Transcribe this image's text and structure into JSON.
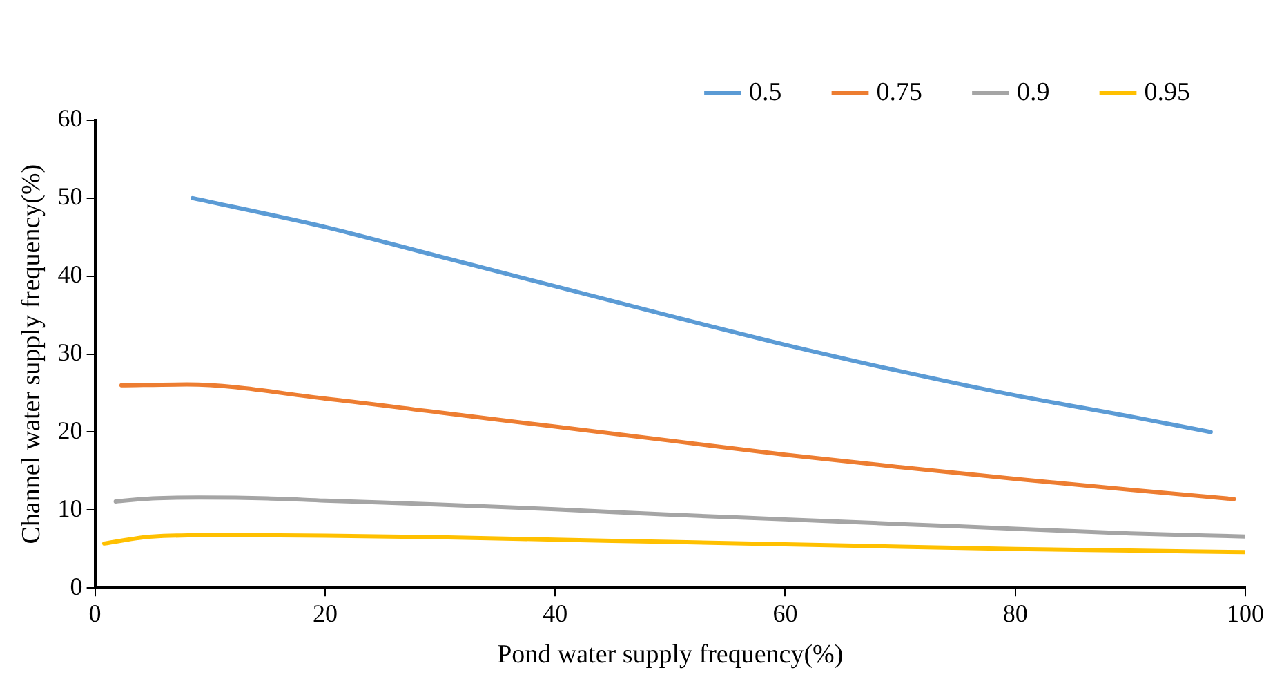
{
  "chart_data": {
    "type": "line",
    "xlabel": "Pond water supply frequency(%)",
    "ylabel": "Channel water supply frequency(%)",
    "xlim": [
      0,
      100
    ],
    "xticks": [
      0,
      20,
      40,
      60,
      80,
      100
    ],
    "ylim": [
      0,
      60
    ],
    "yticks": [
      0,
      10,
      20,
      30,
      40,
      50,
      60
    ],
    "grid": false,
    "legend": "top right",
    "marker": "none",
    "line_style": "solid",
    "series": [
      {
        "name": "0.5",
        "color": "#5b9bd5",
        "x": [
          8.5,
          20,
          30,
          40,
          50,
          60,
          70,
          80,
          90,
          97
        ],
        "values": [
          50,
          46.3,
          42.5,
          38.7,
          34.9,
          31.2,
          27.8,
          24.7,
          22,
          20
        ]
      },
      {
        "name": "0.75",
        "color": "#ed7d31",
        "x": [
          2.3,
          8,
          20,
          30,
          40,
          50,
          60,
          70,
          80,
          90,
          99
        ],
        "values": [
          26,
          26.1,
          24.3,
          22.5,
          20.7,
          18.9,
          17.1,
          15.5,
          14,
          12.6,
          11.4
        ]
      },
      {
        "name": "0.9",
        "color": "#a5a5a5",
        "x": [
          1.8,
          5,
          9,
          15,
          20,
          30,
          40,
          50,
          60,
          70,
          80,
          90,
          100
        ],
        "values": [
          11.1,
          11.5,
          11.6,
          11.5,
          11.2,
          10.7,
          10.1,
          9.4,
          8.8,
          8.2,
          7.6,
          7,
          6.6
        ]
      },
      {
        "name": "0.95",
        "color": "#ffc000",
        "x": [
          0.8,
          5,
          12,
          20,
          30,
          40,
          50,
          60,
          70,
          80,
          90,
          100
        ],
        "values": [
          5.7,
          6.6,
          6.8,
          6.7,
          6.5,
          6.2,
          5.9,
          5.6,
          5.3,
          5,
          4.8,
          4.6
        ]
      }
    ]
  }
}
